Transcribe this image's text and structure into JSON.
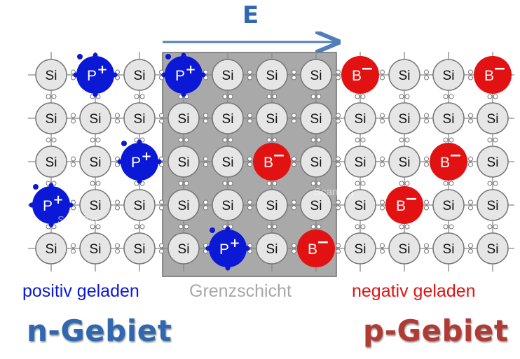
{
  "field_label": "E",
  "captions": {
    "n_side": "positiv geladen",
    "junction": "Grenzschicht",
    "p_side": "negativ geladen"
  },
  "regions": {
    "n": "n-Gebiet",
    "p": "p-Gebiet"
  },
  "watermark": "ScanDig",
  "colors": {
    "donor": "#0b18d6",
    "acceptor": "#e31212",
    "silicon_fill": "#e6e6e6",
    "junction_fill": "#a9a9a9",
    "field_arrow": "#4f7fb8"
  },
  "lattice": {
    "columns": 11,
    "rows": 5,
    "junction_columns": [
      4,
      7
    ],
    "atoms": [
      [
        "Si",
        "P+",
        "Si",
        "P+",
        "Si",
        "Si",
        "Si",
        "B-",
        "Si",
        "Si",
        "B-"
      ],
      [
        "Si",
        "Si",
        "Si",
        "Si",
        "Si",
        "Si",
        "Si",
        "Si",
        "Si",
        "Si",
        "Si"
      ],
      [
        "Si",
        "Si",
        "P+",
        "Si",
        "Si",
        "B-",
        "Si",
        "Si",
        "Si",
        "B-",
        "Si"
      ],
      [
        "P+",
        "Si",
        "Si",
        "Si",
        "Si",
        "Si",
        "Si",
        "Si",
        "B-",
        "Si",
        "Si"
      ],
      [
        "Si",
        "Si",
        "Si",
        "Si",
        "P+",
        "Si",
        "B-",
        "Si",
        "Si",
        "Si",
        "Si"
      ]
    ],
    "labels": {
      "Si": "Si",
      "P+": "P",
      "P+_sign": "+",
      "B-": "B",
      "B-_sign": "−"
    }
  }
}
